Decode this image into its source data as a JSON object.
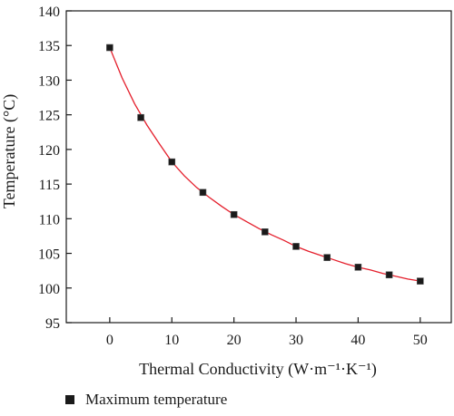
{
  "chart_data": {
    "type": "scatter",
    "xlabel": "Thermal Conductivity (W·m⁻¹·K⁻¹)",
    "ylabel": "Temperature (°C)",
    "xlim": [
      -7,
      55
    ],
    "ylim": [
      95,
      140
    ],
    "xticks": [
      0,
      10,
      20,
      30,
      40,
      50
    ],
    "yticks": [
      95,
      100,
      105,
      110,
      115,
      120,
      125,
      130,
      135,
      140
    ],
    "grid": false,
    "legend_position": "bottom-left, below plot",
    "series": [
      {
        "name": "Maximum temperature",
        "marker": "square",
        "color": "#1a1a1a",
        "x": [
          0,
          5,
          10,
          15,
          20,
          25,
          30,
          35,
          40,
          45,
          50
        ],
        "y": [
          134.7,
          124.6,
          118.2,
          113.8,
          110.6,
          108.1,
          106.0,
          104.4,
          103.0,
          101.9,
          101.0
        ]
      }
    ],
    "fit_curve": {
      "color": "#e41e2b",
      "model": "exponential decay",
      "x": [
        0,
        2,
        4,
        6,
        8,
        10,
        12,
        14,
        16,
        18,
        20,
        22,
        24,
        26,
        28,
        30,
        32,
        34,
        36,
        38,
        40,
        42,
        44,
        46,
        48,
        50
      ],
      "y": [
        134.7,
        130.3,
        126.6,
        123.5,
        120.8,
        118.2,
        116.2,
        114.5,
        113.1,
        111.8,
        110.6,
        109.6,
        108.6,
        107.7,
        106.9,
        106.0,
        105.3,
        104.7,
        104.1,
        103.5,
        103.0,
        102.6,
        102.1,
        101.7,
        101.3,
        101.0
      ]
    }
  }
}
